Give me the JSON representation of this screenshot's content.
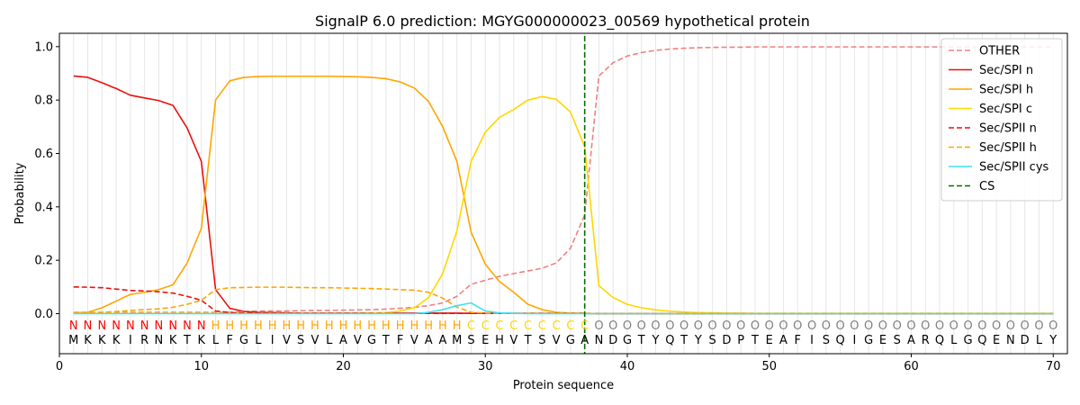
{
  "chart_data": {
    "type": "line",
    "title": "SignalP 6.0 prediction: MGYG000000023_00569 hypothetical protein",
    "xlabel": "Protein sequence",
    "ylabel": "Probability",
    "xlim": [
      0,
      71
    ],
    "ylim": [
      -0.15,
      1.05
    ],
    "x_ticks": [
      0,
      10,
      20,
      30,
      40,
      50,
      60,
      70
    ],
    "y_ticks": [
      0.0,
      0.2,
      0.4,
      0.6,
      0.8,
      1.0
    ],
    "x_tick_labels": [
      "0",
      "10",
      "20",
      "30",
      "40",
      "50",
      "60",
      "70"
    ],
    "y_tick_labels": [
      "0.0",
      "0.2",
      "0.4",
      "0.6",
      "0.8",
      "1.0"
    ],
    "grid": "vertical",
    "legend_position": "top-right",
    "cleavage_site": 37,
    "sequence": [
      "M",
      "K",
      "K",
      "K",
      "I",
      "R",
      "N",
      "K",
      "T",
      "K",
      "L",
      "F",
      "G",
      "L",
      "I",
      "V",
      "S",
      "V",
      "L",
      "A",
      "V",
      "G",
      "T",
      "F",
      "V",
      "A",
      "A",
      "M",
      "S",
      "E",
      "H",
      "V",
      "T",
      "S",
      "V",
      "G",
      "A",
      "N",
      "D",
      "G",
      "T",
      "Y",
      "Q",
      "T",
      "Y",
      "S",
      "D",
      "P",
      "T",
      "E",
      "A",
      "F",
      "I",
      "S",
      "Q",
      "I",
      "G",
      "E",
      "S",
      "A",
      "R",
      "Q",
      "L",
      "G",
      "Q",
      "E",
      "N",
      "D",
      "L",
      "Y"
    ],
    "labels": [
      "N",
      "N",
      "N",
      "N",
      "N",
      "N",
      "N",
      "N",
      "N",
      "N",
      "H",
      "H",
      "H",
      "H",
      "H",
      "H",
      "H",
      "H",
      "H",
      "H",
      "H",
      "H",
      "H",
      "H",
      "H",
      "H",
      "H",
      "H",
      "C",
      "C",
      "C",
      "C",
      "C",
      "C",
      "C",
      "C",
      "C",
      "O",
      "O",
      "O",
      "O",
      "O",
      "O",
      "O",
      "O",
      "O",
      "O",
      "O",
      "O",
      "O",
      "O",
      "O",
      "O",
      "O",
      "O",
      "O",
      "O",
      "O",
      "O",
      "O",
      "O",
      "O",
      "O",
      "O",
      "O",
      "O",
      "O",
      "O",
      "O",
      "O"
    ],
    "label_colors": {
      "N": "#ff0000",
      "H": "#ffa500",
      "C": "#ffd700",
      "O": "#808080"
    },
    "series": [
      {
        "name": "OTHER",
        "color": "#f08080",
        "dash": true,
        "values": [
          0.005,
          0.005,
          0.005,
          0.005,
          0.005,
          0.005,
          0.005,
          0.005,
          0.005,
          0.005,
          0.005,
          0.005,
          0.008,
          0.01,
          0.01,
          0.01,
          0.011,
          0.012,
          0.012,
          0.013,
          0.014,
          0.015,
          0.017,
          0.02,
          0.024,
          0.03,
          0.04,
          0.065,
          0.11,
          0.125,
          0.14,
          0.15,
          0.16,
          0.17,
          0.19,
          0.245,
          0.37,
          0.89,
          0.94,
          0.965,
          0.978,
          0.986,
          0.991,
          0.994,
          0.996,
          0.997,
          0.998,
          0.998,
          0.999,
          0.999,
          0.999,
          0.999,
          0.999,
          0.999,
          0.999,
          0.999,
          0.999,
          0.999,
          0.999,
          0.999,
          0.999,
          0.999,
          0.999,
          0.999,
          0.999,
          0.999,
          0.999,
          0.999,
          0.999,
          0.999
        ]
      },
      {
        "name": "Sec/SPI n",
        "color": "#e8110f",
        "dash": false,
        "values": [
          0.89,
          0.885,
          0.865,
          0.843,
          0.818,
          0.808,
          0.798,
          0.78,
          0.695,
          0.57,
          0.09,
          0.02,
          0.008,
          0.005,
          0.004,
          0.003,
          0.002,
          0.002,
          0.002,
          0.002,
          0.002,
          0.002,
          0.002,
          0.002,
          0.002,
          0.002,
          0.002,
          0.002,
          0.001,
          0.001,
          0.001,
          0.001,
          0.001,
          0.001,
          0.001,
          0.001,
          0.001,
          0.0,
          0.0,
          0.0,
          0.0,
          0.0,
          0.0,
          0.0,
          0.0,
          0.0,
          0.0,
          0.0,
          0.0,
          0.0,
          0.0,
          0.0,
          0.0,
          0.0,
          0.0,
          0.0,
          0.0,
          0.0,
          0.0,
          0.0,
          0.0,
          0.0,
          0.0,
          0.0,
          0.0,
          0.0,
          0.0,
          0.0,
          0.0,
          0.0
        ]
      },
      {
        "name": "Sec/SPI h",
        "color": "#ffa500",
        "dash": false,
        "values": [
          0.003,
          0.005,
          0.022,
          0.047,
          0.072,
          0.08,
          0.09,
          0.108,
          0.19,
          0.32,
          0.8,
          0.872,
          0.885,
          0.888,
          0.889,
          0.889,
          0.889,
          0.889,
          0.889,
          0.888,
          0.887,
          0.885,
          0.88,
          0.868,
          0.845,
          0.795,
          0.7,
          0.57,
          0.305,
          0.185,
          0.12,
          0.08,
          0.035,
          0.015,
          0.005,
          0.002,
          0.001,
          0.0,
          0.0,
          0.0,
          0.0,
          0.0,
          0.0,
          0.0,
          0.0,
          0.0,
          0.0,
          0.0,
          0.0,
          0.0,
          0.0,
          0.0,
          0.0,
          0.0,
          0.0,
          0.0,
          0.0,
          0.0,
          0.0,
          0.0,
          0.0,
          0.0,
          0.0,
          0.0,
          0.0,
          0.0,
          0.0,
          0.0,
          0.0,
          0.0
        ]
      },
      {
        "name": "Sec/SPI c",
        "color": "#ffd700",
        "dash": false,
        "values": [
          0.001,
          0.001,
          0.001,
          0.001,
          0.001,
          0.001,
          0.001,
          0.001,
          0.001,
          0.001,
          0.001,
          0.001,
          0.001,
          0.001,
          0.001,
          0.001,
          0.001,
          0.001,
          0.001,
          0.001,
          0.001,
          0.002,
          0.004,
          0.01,
          0.022,
          0.06,
          0.15,
          0.31,
          0.57,
          0.68,
          0.735,
          0.765,
          0.8,
          0.813,
          0.803,
          0.755,
          0.625,
          0.105,
          0.06,
          0.035,
          0.022,
          0.014,
          0.009,
          0.006,
          0.004,
          0.003,
          0.002,
          0.002,
          0.001,
          0.001,
          0.001,
          0.001,
          0.001,
          0.001,
          0.001,
          0.001,
          0.001,
          0.001,
          0.001,
          0.001,
          0.001,
          0.001,
          0.001,
          0.001,
          0.001,
          0.001,
          0.001,
          0.001,
          0.001,
          0.001
        ]
      },
      {
        "name": "Sec/SPII n",
        "color": "#e8110f",
        "dash": true,
        "values": [
          0.1,
          0.099,
          0.097,
          0.092,
          0.087,
          0.085,
          0.082,
          0.077,
          0.065,
          0.05,
          0.01,
          0.004,
          0.002,
          0.002,
          0.001,
          0.001,
          0.001,
          0.001,
          0.001,
          0.001,
          0.001,
          0.001,
          0.001,
          0.001,
          0.001,
          0.001,
          0.001,
          0.001,
          0.001,
          0.001,
          0.001,
          0.001,
          0.001,
          0.001,
          0.001,
          0.001,
          0.001,
          0.0,
          0.0,
          0.0,
          0.0,
          0.0,
          0.0,
          0.0,
          0.0,
          0.0,
          0.0,
          0.0,
          0.0,
          0.0,
          0.0,
          0.0,
          0.0,
          0.0,
          0.0,
          0.0,
          0.0,
          0.0,
          0.0,
          0.0,
          0.0,
          0.0,
          0.0,
          0.0,
          0.0,
          0.0,
          0.0,
          0.0,
          0.0,
          0.0
        ]
      },
      {
        "name": "Sec/SPII h",
        "color": "#ffa500",
        "dash": true,
        "values": [
          0.003,
          0.003,
          0.005,
          0.008,
          0.012,
          0.015,
          0.018,
          0.024,
          0.035,
          0.05,
          0.09,
          0.097,
          0.098,
          0.099,
          0.099,
          0.099,
          0.098,
          0.097,
          0.097,
          0.096,
          0.095,
          0.094,
          0.092,
          0.09,
          0.088,
          0.08,
          0.058,
          0.025,
          0.005,
          0.002,
          0.001,
          0.001,
          0.001,
          0.001,
          0.001,
          0.001,
          0.001,
          0.0,
          0.0,
          0.0,
          0.0,
          0.0,
          0.0,
          0.0,
          0.0,
          0.0,
          0.0,
          0.0,
          0.0,
          0.0,
          0.0,
          0.0,
          0.0,
          0.0,
          0.0,
          0.0,
          0.0,
          0.0,
          0.0,
          0.0,
          0.0,
          0.0,
          0.0,
          0.0,
          0.0,
          0.0,
          0.0,
          0.0,
          0.0,
          0.0
        ]
      },
      {
        "name": "Sec/SPII cys",
        "color": "#40e0f0",
        "dash": false,
        "values": [
          0.0,
          0.0,
          0.0,
          0.0,
          0.0,
          0.0,
          0.0,
          0.0,
          0.0,
          0.0,
          0.0,
          0.0,
          0.0,
          0.0,
          0.0,
          0.0,
          0.0,
          0.0,
          0.0,
          0.0,
          0.0,
          0.0,
          0.0,
          0.0,
          0.0,
          0.005,
          0.015,
          0.03,
          0.04,
          0.01,
          0.003,
          0.001,
          0.0,
          0.0,
          0.0,
          0.0,
          0.0,
          0.0,
          0.0,
          0.0,
          0.0,
          0.0,
          0.0,
          0.0,
          0.0,
          0.0,
          0.0,
          0.0,
          0.0,
          0.0,
          0.0,
          0.0,
          0.0,
          0.0,
          0.0,
          0.0,
          0.0,
          0.0,
          0.0,
          0.0,
          0.0,
          0.0,
          0.0,
          0.0,
          0.0,
          0.0,
          0.0,
          0.0,
          0.0,
          0.0
        ]
      }
    ],
    "cs_legend": {
      "name": "CS",
      "color": "#007000"
    }
  }
}
